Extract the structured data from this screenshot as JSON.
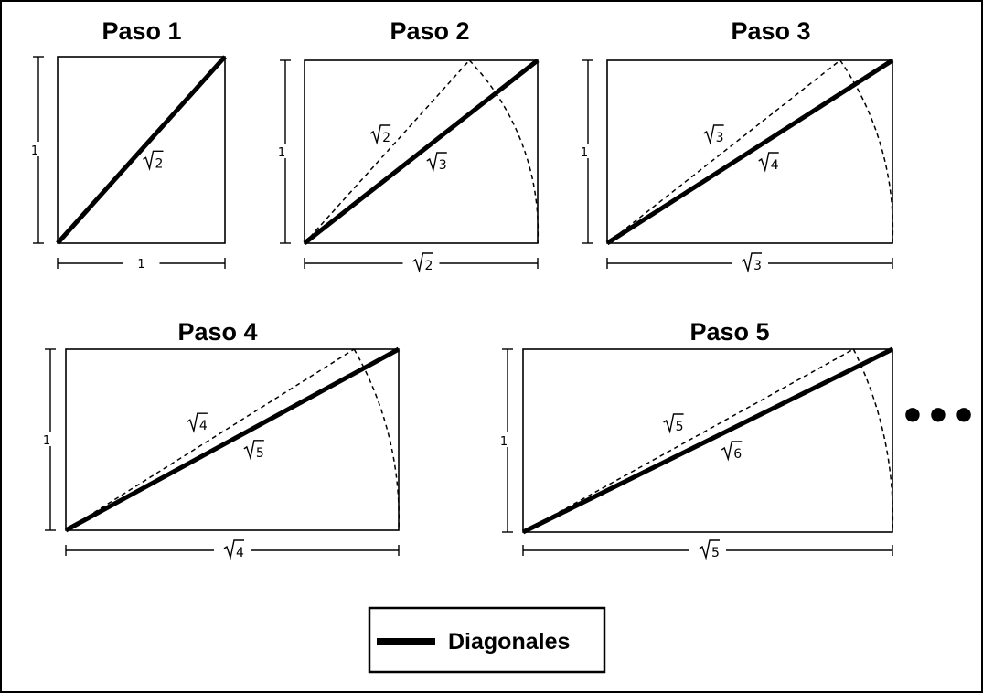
{
  "steps": [
    {
      "title": "Paso 1",
      "height_label": "1",
      "width_label": "1",
      "width_rad": false,
      "dashed_rad": null,
      "solid_rad": "2"
    },
    {
      "title": "Paso 2",
      "height_label": "1",
      "width_label": "2",
      "width_rad": true,
      "dashed_rad": "2",
      "solid_rad": "3"
    },
    {
      "title": "Paso 3",
      "height_label": "1",
      "width_label": "3",
      "width_rad": true,
      "dashed_rad": "3",
      "solid_rad": "4"
    },
    {
      "title": "Paso 4",
      "height_label": "1",
      "width_label": "4",
      "width_rad": true,
      "dashed_rad": "4",
      "solid_rad": "5"
    },
    {
      "title": "Paso 5",
      "height_label": "1",
      "width_label": "5",
      "width_rad": true,
      "dashed_rad": "5",
      "solid_rad": "6"
    }
  ],
  "continuation": "•••",
  "legend": {
    "label": "Diagonales"
  }
}
